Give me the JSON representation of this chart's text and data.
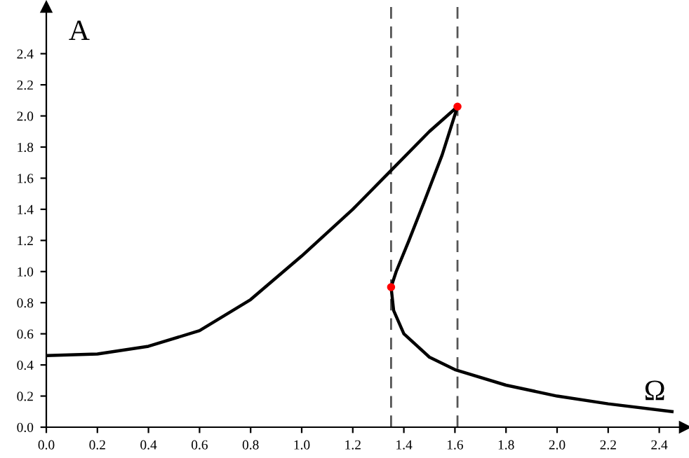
{
  "chart_data": {
    "type": "line",
    "xlabel": "Ω",
    "ylabel": "A",
    "xlim": [
      0,
      2.5
    ],
    "ylim": [
      0,
      2.7
    ],
    "xticks": [
      {
        "value": 0,
        "label": "0.0"
      },
      0.2,
      0.4,
      0.6,
      0.8,
      {
        "value": 1,
        "label": "1.0"
      },
      1.2,
      1.4,
      1.6,
      1.8,
      {
        "value": 2,
        "label": "2.0"
      },
      2.2,
      2.4
    ],
    "yticks": [
      {
        "value": 0,
        "label": "0.0"
      },
      0.2,
      0.4,
      0.6,
      0.8,
      {
        "value": 1,
        "label": "1.0"
      },
      1.2,
      1.4,
      1.6,
      1.8,
      {
        "value": 2,
        "label": "2.0"
      },
      2.2,
      2.4
    ],
    "grid": false,
    "legend": false,
    "series": [
      {
        "color": "#000000",
        "marker": "none",
        "line_style": "solid",
        "x": [
          0,
          0.2,
          0.4,
          0.6,
          0.8,
          1.0,
          1.2,
          1.35,
          1.5,
          1.61,
          1.55,
          1.48,
          1.42,
          1.37,
          1.35,
          1.36,
          1.4,
          1.5,
          1.6,
          1.8,
          2.0,
          2.2,
          2.45
        ],
        "values": [
          0.46,
          0.47,
          0.52,
          0.62,
          0.82,
          1.1,
          1.4,
          1.65,
          1.9,
          2.06,
          1.75,
          1.45,
          1.2,
          1.0,
          0.9,
          0.75,
          0.6,
          0.45,
          0.37,
          0.27,
          0.2,
          0.15,
          0.1
        ]
      },
      {
        "type": "scatter",
        "color": "#ff0000",
        "marker": "circle",
        "x": [
          1.61,
          1.35
        ],
        "values": [
          2.06,
          0.9
        ]
      }
    ],
    "ref_lines": [
      {
        "axis": "x",
        "value": 1.35,
        "color": "#555555",
        "line_style": "dashed"
      },
      {
        "axis": "x",
        "value": 1.61,
        "color": "#555555",
        "line_style": "dashed"
      }
    ]
  }
}
